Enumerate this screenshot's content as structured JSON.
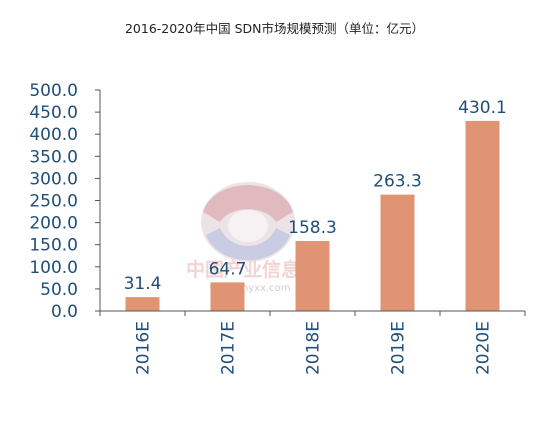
{
  "chart_data": {
    "type": "bar",
    "title": "2016-2020年中国 SDN市场规模预测（单位：亿元）",
    "categories": [
      "2016E",
      "2017E",
      "2018E",
      "2019E",
      "2020E"
    ],
    "values": [
      31.4,
      64.7,
      158.3,
      263.3,
      430.1
    ],
    "value_labels": [
      "31.4",
      "64.7",
      "158.3",
      "263.3",
      "430.1"
    ],
    "ylim": [
      0,
      500
    ],
    "yticks": [
      "0.0",
      "50.0",
      "100.0",
      "150.0",
      "200.0",
      "250.0",
      "300.0",
      "350.0",
      "400.0",
      "450.0",
      "500.0"
    ],
    "xlabel": "",
    "ylabel": "",
    "grid": false,
    "legend": "none",
    "colors": {
      "bar": "#E19473",
      "text": "#1F4E79",
      "axis": "#555555"
    }
  },
  "watermark": {
    "cn": "中国产业信息",
    "url": "www.chyxx.com"
  }
}
